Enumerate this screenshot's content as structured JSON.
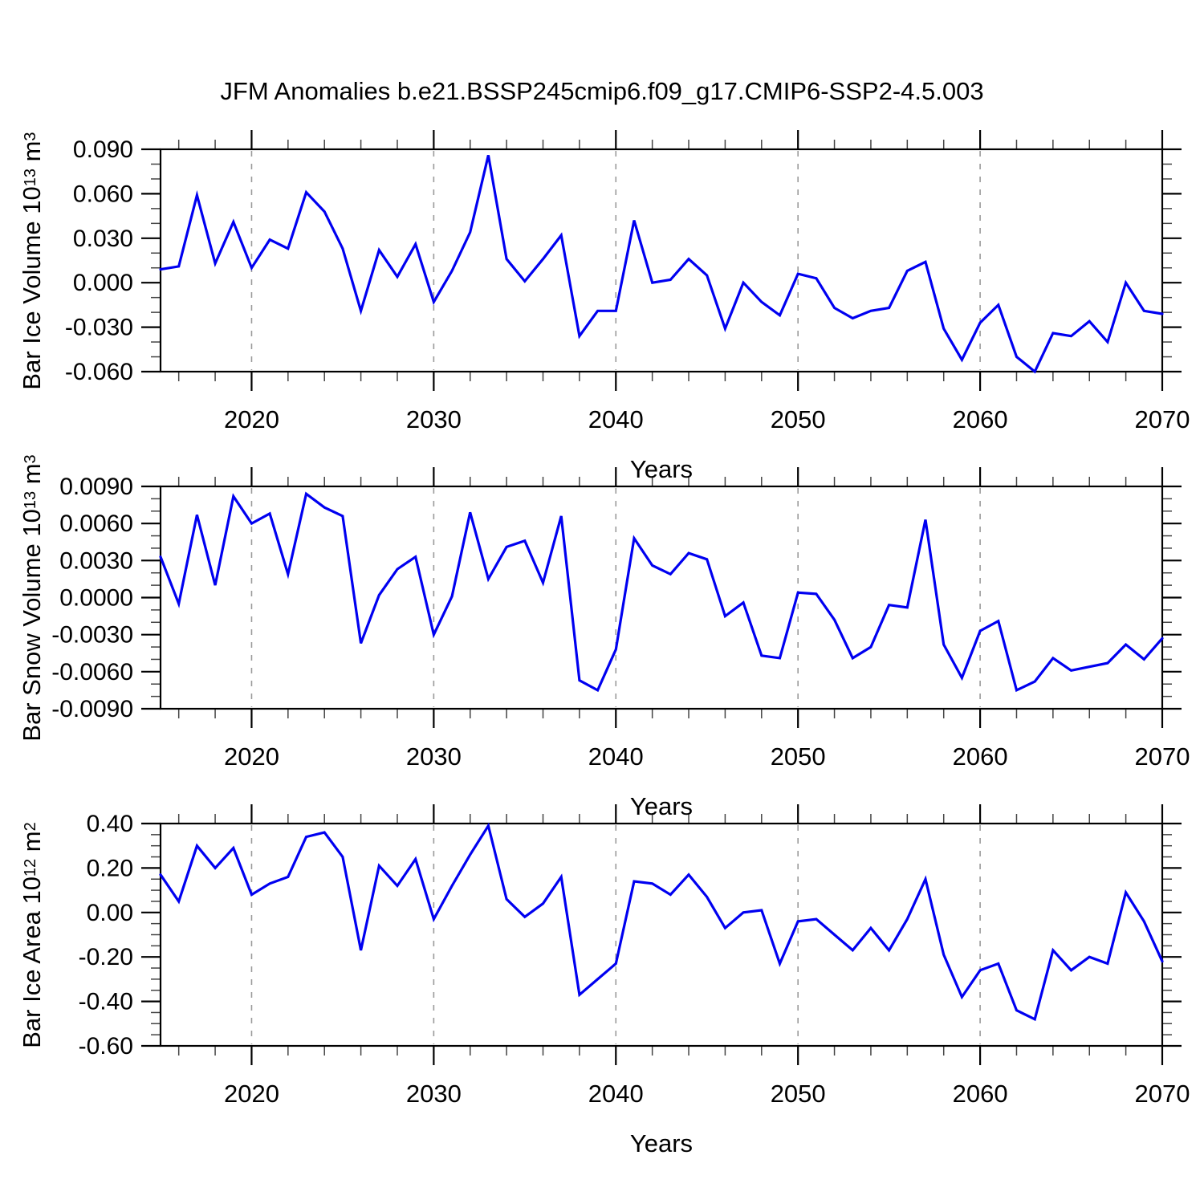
{
  "title": "JFM Anomalies b.e21.BSSP245cmip6.f09_g17.CMIP6-SSP2-4.5.003",
  "colors": {
    "line": "#0000f0",
    "frame": "#000000",
    "grid": "#9a9a9a",
    "minor_tick": "#444444",
    "text": "#000000",
    "background": "#ffffff"
  },
  "x_axis": {
    "label": "Years",
    "range": [
      2015,
      2070
    ],
    "major_ticks": [
      2020,
      2030,
      2040,
      2050,
      2060,
      2070
    ],
    "major_tick_labels": [
      "2020",
      "2030",
      "2040",
      "2050",
      "2060",
      "2070"
    ],
    "minor_step_years": 2,
    "gridline_years": [
      2020,
      2030,
      2040,
      2050,
      2060
    ],
    "grid_style": "dashed"
  },
  "chart_data": [
    {
      "type": "line",
      "title": "",
      "xlabel": "Years",
      "ylabel": "Bar Ice Volume 10^13 m^3",
      "ylabel_segments": [
        {
          "t": "Bar Ice Volume 10"
        },
        {
          "t": "13",
          "sup": true
        },
        {
          "t": " m"
        },
        {
          "t": "3",
          "sup": true
        }
      ],
      "ylim": [
        -0.06,
        0.09
      ],
      "y_major_step": 0.03,
      "y_minors_between_majors": 2,
      "y_tick_labels": [
        "0.090",
        "0.060",
        "0.030",
        "0.000",
        "-0.030",
        "-0.060"
      ],
      "x": [
        2015,
        2016,
        2017,
        2018,
        2019,
        2020,
        2021,
        2022,
        2023,
        2024,
        2025,
        2026,
        2027,
        2028,
        2029,
        2030,
        2031,
        2032,
        2033,
        2034,
        2035,
        2036,
        2037,
        2038,
        2039,
        2040,
        2041,
        2042,
        2043,
        2044,
        2045,
        2046,
        2047,
        2048,
        2049,
        2050,
        2051,
        2052,
        2053,
        2054,
        2055,
        2056,
        2057,
        2058,
        2059,
        2060,
        2061,
        2062,
        2063,
        2064,
        2065,
        2066,
        2067,
        2068,
        2069,
        2070
      ],
      "values": [
        0.009,
        0.011,
        0.059,
        0.013,
        0.041,
        0.01,
        0.029,
        0.023,
        0.061,
        0.048,
        0.023,
        -0.019,
        0.022,
        0.004,
        0.026,
        -0.013,
        0.008,
        0.034,
        0.086,
        0.016,
        0.001,
        0.016,
        0.032,
        -0.036,
        -0.019,
        -0.019,
        0.042,
        0.0,
        0.002,
        0.016,
        0.005,
        -0.031,
        0.0,
        -0.013,
        -0.022,
        0.006,
        0.003,
        -0.017,
        -0.024,
        -0.019,
        -0.017,
        0.008,
        0.014,
        -0.031,
        -0.052,
        -0.027,
        -0.015,
        -0.05,
        -0.06,
        -0.034,
        -0.036,
        -0.026,
        -0.04,
        0.0,
        -0.019,
        -0.021
      ]
    },
    {
      "type": "line",
      "title": "",
      "xlabel": "Years",
      "ylabel": "Bar Snow Volume 10^13 m^3",
      "ylabel_segments": [
        {
          "t": "Bar Snow Volume 10"
        },
        {
          "t": "13",
          "sup": true
        },
        {
          "t": " m"
        },
        {
          "t": "3",
          "sup": true
        }
      ],
      "ylim": [
        -0.009,
        0.009
      ],
      "y_major_step": 0.003,
      "y_minors_between_majors": 2,
      "y_tick_labels": [
        "0.0090",
        "0.0060",
        "0.0030",
        "0.0000",
        "-0.0030",
        "-0.0060",
        "-0.0090"
      ],
      "x": [
        2015,
        2016,
        2017,
        2018,
        2019,
        2020,
        2021,
        2022,
        2023,
        2024,
        2025,
        2026,
        2027,
        2028,
        2029,
        2030,
        2031,
        2032,
        2033,
        2034,
        2035,
        2036,
        2037,
        2038,
        2039,
        2040,
        2041,
        2042,
        2043,
        2044,
        2045,
        2046,
        2047,
        2048,
        2049,
        2050,
        2051,
        2052,
        2053,
        2054,
        2055,
        2056,
        2057,
        2058,
        2059,
        2060,
        2061,
        2062,
        2063,
        2064,
        2065,
        2066,
        2067,
        2068,
        2069,
        2070
      ],
      "values": [
        0.0033,
        -0.0005,
        0.0067,
        0.001,
        0.0082,
        0.006,
        0.0068,
        0.0019,
        0.0084,
        0.0073,
        0.0066,
        -0.0037,
        0.0002,
        0.0023,
        0.0033,
        -0.003,
        0.0001,
        0.0069,
        0.0015,
        0.0041,
        0.0046,
        0.0012,
        0.0066,
        -0.0067,
        -0.0075,
        -0.0042,
        0.0048,
        0.0026,
        0.0019,
        0.0036,
        0.0031,
        -0.0015,
        -0.0004,
        -0.0047,
        -0.0049,
        0.0004,
        0.0003,
        -0.0018,
        -0.0049,
        -0.004,
        -0.0006,
        -0.0008,
        0.0063,
        -0.0038,
        -0.0065,
        -0.0027,
        -0.0019,
        -0.0075,
        -0.0068,
        -0.0049,
        -0.0059,
        -0.0056,
        -0.0053,
        -0.0038,
        -0.005,
        -0.0033
      ]
    },
    {
      "type": "line",
      "title": "",
      "xlabel": "Years",
      "ylabel": "Bar Ice Area 10^12 m^2",
      "ylabel_segments": [
        {
          "t": "Bar Ice Area 10"
        },
        {
          "t": "12",
          "sup": true
        },
        {
          "t": " m"
        },
        {
          "t": "2",
          "sup": true
        }
      ],
      "ylim": [
        -0.6,
        0.4
      ],
      "y_major_step": 0.2,
      "y_minors_between_majors": 3,
      "y_tick_labels": [
        "0.40",
        "0.20",
        "0.00",
        "-0.20",
        "-0.40",
        "-0.60"
      ],
      "x": [
        2015,
        2016,
        2017,
        2018,
        2019,
        2020,
        2021,
        2022,
        2023,
        2024,
        2025,
        2026,
        2027,
        2028,
        2029,
        2030,
        2031,
        2032,
        2033,
        2034,
        2035,
        2036,
        2037,
        2038,
        2039,
        2040,
        2041,
        2042,
        2043,
        2044,
        2045,
        2046,
        2047,
        2048,
        2049,
        2050,
        2051,
        2052,
        2053,
        2054,
        2055,
        2056,
        2057,
        2058,
        2059,
        2060,
        2061,
        2062,
        2063,
        2064,
        2065,
        2066,
        2067,
        2068,
        2069,
        2070
      ],
      "values": [
        0.17,
        0.05,
        0.3,
        0.2,
        0.29,
        0.08,
        0.13,
        0.16,
        0.34,
        0.36,
        0.25,
        -0.17,
        0.21,
        0.12,
        0.24,
        -0.03,
        0.12,
        0.26,
        0.39,
        0.06,
        -0.02,
        0.04,
        0.16,
        -0.37,
        -0.3,
        -0.23,
        0.14,
        0.13,
        0.08,
        0.17,
        0.07,
        -0.07,
        0.0,
        0.01,
        -0.23,
        -0.04,
        -0.03,
        -0.1,
        -0.17,
        -0.07,
        -0.17,
        -0.03,
        0.15,
        -0.19,
        -0.38,
        -0.26,
        -0.23,
        -0.44,
        -0.48,
        -0.17,
        -0.26,
        -0.2,
        -0.23,
        0.09,
        -0.04,
        -0.22
      ]
    }
  ]
}
